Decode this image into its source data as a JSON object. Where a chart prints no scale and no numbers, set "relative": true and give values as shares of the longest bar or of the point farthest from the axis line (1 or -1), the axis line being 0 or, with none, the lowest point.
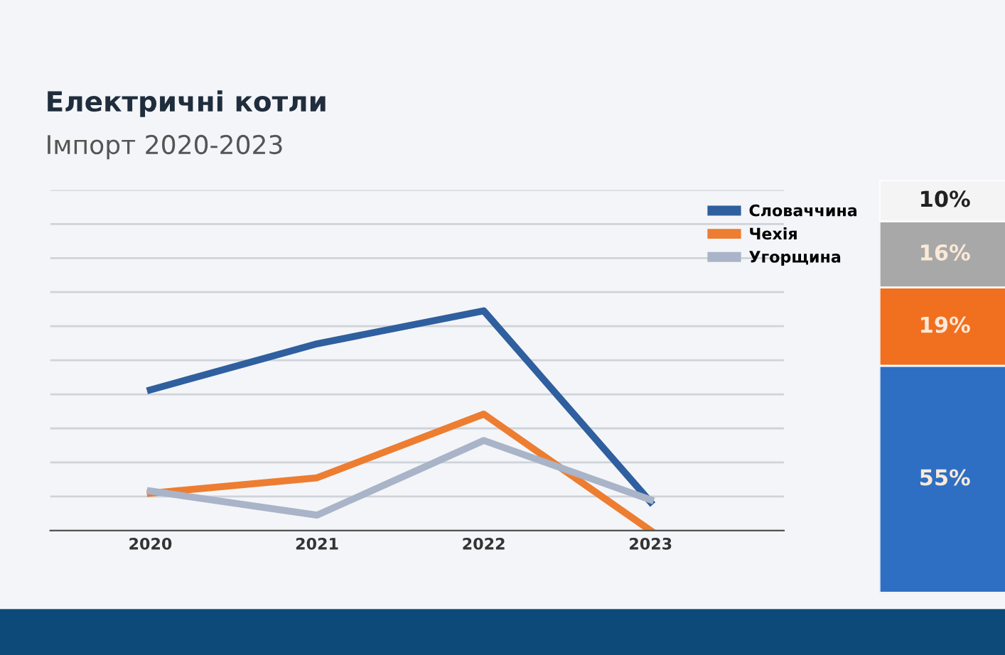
{
  "chart_data": [
    {
      "type": "line",
      "title": "Електричні котли",
      "subtitle": "Імпорт 2020-2023",
      "relative": true,
      "categories": [
        "2020",
        "2021",
        "2022",
        "2023"
      ],
      "grid": "y",
      "legend": "top right",
      "marker": "none",
      "line_style": "solid",
      "series": [
        {
          "name": "Словаччина",
          "color": "#2f5f9e",
          "values": [
            0.64,
            0.85,
            1,
            0.13
          ]
        },
        {
          "name": "Чехія",
          "color": "#ed7d31",
          "values": [
            0.17,
            0.24,
            0.53,
            0
          ]
        },
        {
          "name": "Угорщина",
          "color": "#a9b4c8",
          "values": [
            0.18,
            0.07,
            0.41,
            0.14
          ]
        }
      ]
    },
    {
      "type": "bar",
      "stacked": true,
      "categories": [
        null
      ],
      "series": [
        {
          "color": "#2e6fc4",
          "values": [
            55
          ],
          "value_labels": [
            "55%"
          ]
        },
        {
          "color": "#f07020",
          "values": [
            19
          ],
          "value_labels": [
            "19%"
          ]
        },
        {
          "color": "#a8a8a8",
          "values": [
            16
          ],
          "value_labels": [
            "16%"
          ]
        },
        {
          "color": "#f4f4f4",
          "values": [
            10
          ],
          "value_labels": [
            "10%"
          ]
        }
      ]
    }
  ]
}
